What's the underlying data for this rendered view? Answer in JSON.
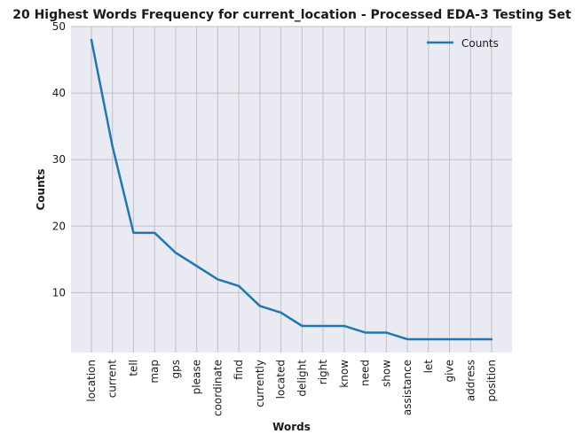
{
  "chart_data": {
    "type": "line",
    "title": "20 Highest Words Frequency for current_location - Processed EDA-3 Testing Set",
    "xlabel": "Words",
    "ylabel": "Counts",
    "categories": [
      "location",
      "current",
      "tell",
      "map",
      "gps",
      "please",
      "coordinate",
      "find",
      "currently",
      "located",
      "delight",
      "right",
      "know",
      "need",
      "show",
      "assistance",
      "let",
      "give",
      "address",
      "position"
    ],
    "series": [
      {
        "name": "Counts",
        "values": [
          48,
          32,
          19,
          19,
          16,
          14,
          12,
          11,
          8,
          7,
          5,
          5,
          5,
          4,
          4,
          3,
          3,
          3,
          3,
          3
        ],
        "color": "#1f77b4"
      }
    ],
    "ylim": [
      1,
      50
    ],
    "yticks": [
      10,
      20,
      30,
      40,
      50
    ],
    "grid": true,
    "legend": "top-right",
    "background": "#eaeaf2",
    "grid_color": "#c0c0c0"
  }
}
